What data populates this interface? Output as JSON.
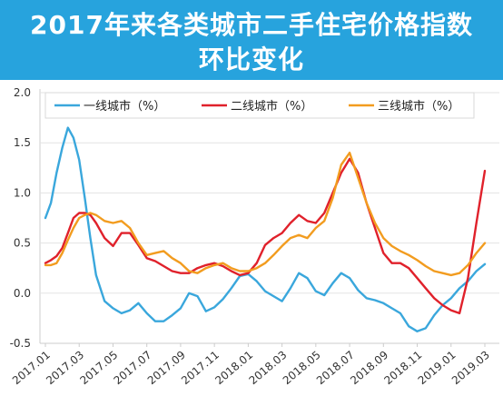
{
  "title_lines": [
    "2017年来各类城市二手住宅价格指数",
    "环比变化"
  ],
  "colors": {
    "banner": "#27a3dd",
    "tier1": "#3aa7dc",
    "tier2": "#e0212b",
    "tier3": "#f29c1f"
  },
  "chart_data": {
    "type": "line",
    "title": "2017年来各类城市二手住宅价格指数环比变化",
    "ylim": [
      -0.5,
      2.0
    ],
    "y_ticks": [
      "2.0",
      "1.5",
      "1.0",
      "0.5",
      "0.0",
      "-0.5"
    ],
    "y_tick_values": [
      2.0,
      1.5,
      1.0,
      0.5,
      0.0,
      -0.5
    ],
    "x_tick_labels": [
      "2017.01",
      "2017.03",
      "2017.05",
      "2017.07",
      "2017.09",
      "2017.11",
      "2018.01",
      "2018.03",
      "2018.05",
      "2018.07",
      "2018.09",
      "2018.11",
      "2019.01",
      "2019.03"
    ],
    "x_tick_values": [
      0,
      2,
      4,
      6,
      8,
      10,
      12,
      14,
      16,
      18,
      20,
      22,
      24,
      26
    ],
    "legend_position": "top",
    "series": [
      {
        "name": "一线城市（%）",
        "color": "#3aa7dc",
        "x": [
          0,
          0.33,
          0.66,
          1,
          1.33,
          1.66,
          2,
          2.33,
          2.66,
          3,
          3.5,
          4,
          4.5,
          5,
          5.5,
          6,
          6.5,
          7,
          7.5,
          8,
          8.5,
          9,
          9.5,
          10,
          10.5,
          11,
          11.5,
          12,
          12.5,
          13,
          13.5,
          14,
          14.5,
          15,
          15.5,
          16,
          16.5,
          17,
          17.5,
          18,
          18.5,
          19,
          19.5,
          20,
          20.5,
          21,
          21.5,
          22,
          22.5,
          23,
          23.5,
          24,
          24.5,
          25,
          25.5,
          26
        ],
        "values": [
          0.75,
          0.9,
          1.2,
          1.45,
          1.65,
          1.55,
          1.33,
          0.95,
          0.55,
          0.18,
          -0.08,
          -0.15,
          -0.2,
          -0.17,
          -0.1,
          -0.2,
          -0.28,
          -0.28,
          -0.22,
          -0.15,
          0.0,
          -0.03,
          -0.18,
          -0.14,
          -0.06,
          0.05,
          0.17,
          0.19,
          0.12,
          0.02,
          -0.03,
          -0.08,
          0.05,
          0.2,
          0.15,
          0.02,
          -0.02,
          0.1,
          0.2,
          0.15,
          0.03,
          -0.05,
          -0.07,
          -0.1,
          -0.15,
          -0.2,
          -0.33,
          -0.38,
          -0.35,
          -0.22,
          -0.12,
          -0.05,
          0.05,
          0.12,
          0.22,
          0.29
        ]
      },
      {
        "name": "二线城市（%）",
        "color": "#e0212b",
        "x": [
          0,
          0.33,
          0.66,
          1,
          1.33,
          1.66,
          2,
          2.33,
          2.66,
          3,
          3.5,
          4,
          4.5,
          5,
          5.5,
          6,
          6.5,
          7,
          7.5,
          8,
          8.5,
          9,
          9.5,
          10,
          10.5,
          11,
          11.5,
          12,
          12.5,
          13,
          13.5,
          14,
          14.5,
          15,
          15.5,
          16,
          16.5,
          17,
          17.5,
          18,
          18.5,
          19,
          19.5,
          20,
          20.5,
          21,
          21.5,
          22,
          22.5,
          23,
          23.5,
          24,
          24.5,
          25,
          25.5,
          26
        ],
        "values": [
          0.3,
          0.33,
          0.37,
          0.45,
          0.6,
          0.75,
          0.8,
          0.8,
          0.78,
          0.7,
          0.55,
          0.47,
          0.6,
          0.6,
          0.48,
          0.35,
          0.32,
          0.27,
          0.22,
          0.2,
          0.2,
          0.25,
          0.28,
          0.3,
          0.27,
          0.22,
          0.18,
          0.2,
          0.3,
          0.48,
          0.55,
          0.6,
          0.7,
          0.78,
          0.72,
          0.7,
          0.8,
          1.0,
          1.2,
          1.34,
          1.2,
          0.9,
          0.65,
          0.4,
          0.3,
          0.3,
          0.25,
          0.15,
          0.05,
          -0.05,
          -0.12,
          -0.17,
          -0.2,
          0.15,
          0.7,
          1.22
        ]
      },
      {
        "name": "三线城市（%）",
        "color": "#f29c1f",
        "x": [
          0,
          0.33,
          0.66,
          1,
          1.33,
          1.66,
          2,
          2.33,
          2.66,
          3,
          3.5,
          4,
          4.5,
          5,
          5.5,
          6,
          6.5,
          7,
          7.5,
          8,
          8.5,
          9,
          9.5,
          10,
          10.5,
          11,
          11.5,
          12,
          12.5,
          13,
          13.5,
          14,
          14.5,
          15,
          15.5,
          16,
          16.5,
          17,
          17.5,
          18,
          18.5,
          19,
          19.5,
          20,
          20.5,
          21,
          21.5,
          22,
          22.5,
          23,
          23.5,
          24,
          24.5,
          25,
          25.5,
          26
        ],
        "values": [
          0.28,
          0.28,
          0.3,
          0.4,
          0.53,
          0.65,
          0.75,
          0.78,
          0.8,
          0.78,
          0.72,
          0.7,
          0.72,
          0.65,
          0.5,
          0.38,
          0.4,
          0.42,
          0.35,
          0.3,
          0.22,
          0.2,
          0.25,
          0.28,
          0.3,
          0.25,
          0.22,
          0.22,
          0.25,
          0.3,
          0.38,
          0.47,
          0.55,
          0.58,
          0.55,
          0.65,
          0.72,
          0.95,
          1.28,
          1.4,
          1.15,
          0.9,
          0.7,
          0.55,
          0.47,
          0.42,
          0.38,
          0.33,
          0.27,
          0.22,
          0.2,
          0.18,
          0.2,
          0.28,
          0.4,
          0.5
        ]
      }
    ]
  }
}
